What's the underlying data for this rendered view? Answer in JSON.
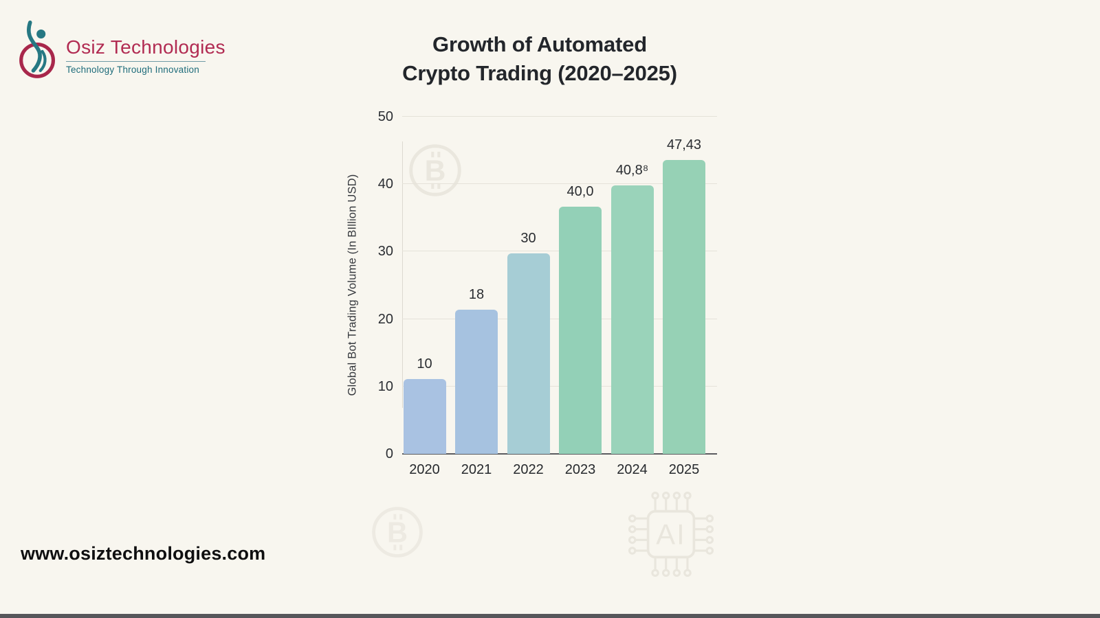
{
  "page": {
    "background": "#f8f6ef",
    "bottom_strip_color": "#56565a"
  },
  "branding": {
    "logo": {
      "name": "Osiz Technologies",
      "tagline": "Technology Through Innovation",
      "wordmark_color": "#b12b52",
      "tagline_color": "#1d6b7a",
      "mark_circle_color": "#a8274b",
      "mark_figure_color": "#267883"
    },
    "website": "www.osiztechnologies.com"
  },
  "chart_data": {
    "type": "bar",
    "title": "Growth of Automated Crypto Trading (2020–2025)",
    "title_lines": [
      "Growth of Automated",
      "Crypto Trading (2020–2025)"
    ],
    "ylabel": "Global Bot Trading Volume (In BIllion USD)",
    "xlabel": "",
    "ylim": [
      0,
      50
    ],
    "yticks": [
      0,
      10,
      20,
      30,
      40,
      50
    ],
    "grid": true,
    "legend": "none",
    "categories": [
      "2020",
      "2021",
      "2022",
      "2023",
      "2024",
      "2025"
    ],
    "values": [
      10,
      18,
      30,
      40.0,
      40.8,
      47.43
    ],
    "bar_labels": [
      "10",
      "18",
      "30",
      "40,0",
      "40,8⁸",
      "47,43"
    ],
    "bars_drawn_height": [
      11.1,
      21.4,
      29.7,
      36.7,
      39.8,
      43.6
    ],
    "bar_colors": [
      "#a9c2e2",
      "#a6c2e0",
      "#a6cdd5",
      "#93d0b7",
      "#9ad3ba",
      "#96d1b5"
    ],
    "gridline_color": "#e5e2d9",
    "axis_line_color": "#5a5b5f",
    "watermark_icons": [
      "bitcoin-icon",
      "bitcoin-icon",
      "ai-chip-icon"
    ]
  }
}
